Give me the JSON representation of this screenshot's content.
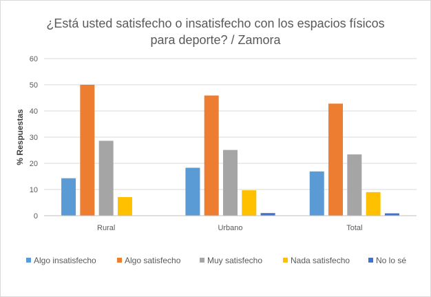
{
  "chart_data": {
    "type": "bar",
    "title_lines": [
      "¿Está usted satisfecho o insatisfecho con los espacios físicos",
      "para deporte? / Zamora"
    ],
    "xlabel": "",
    "ylabel": "% Respuestas",
    "ylim": [
      0,
      60
    ],
    "yticks": [
      0,
      10,
      20,
      30,
      40,
      50,
      60
    ],
    "grid": true,
    "legend_position": "bottom",
    "categories": [
      "Rural",
      "Urbano",
      "Total"
    ],
    "series": [
      {
        "name": "Algo insatisfecho",
        "color": "#5b9bd5",
        "values": [
          14.3,
          18.3,
          16.9
        ]
      },
      {
        "name": "Algo satisfecho",
        "color": "#ed7d31",
        "values": [
          50.0,
          45.9,
          42.8
        ]
      },
      {
        "name": "Muy satisfecho",
        "color": "#a5a5a5",
        "values": [
          28.6,
          25.1,
          23.4
        ]
      },
      {
        "name": "Nada satisfecho",
        "color": "#ffc000",
        "values": [
          7.1,
          9.7,
          9.0
        ]
      },
      {
        "name": "No lo sé",
        "color": "#4472c4",
        "values": [
          0,
          1.0,
          0.9
        ]
      }
    ]
  }
}
